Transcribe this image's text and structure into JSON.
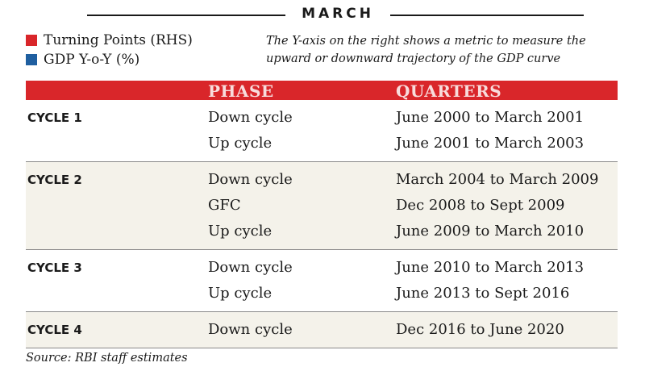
{
  "header": {
    "title": "MARCH"
  },
  "legend": [
    {
      "label": "Turning Points (RHS)",
      "color": "#d9262a"
    },
    {
      "label": "GDP Y-o-Y (%)",
      "color": "#1f5fa0"
    }
  ],
  "note": "The Y-axis on the right shows a metric to measure the upward or downward trajectory of the GDP curve",
  "table": {
    "header_color": "#d9262a",
    "columns": {
      "phase": "PHASE",
      "quarters": "QUARTERS"
    },
    "cycles": [
      {
        "label": "CYCLE 1",
        "rows": [
          {
            "phase": "Down cycle",
            "quarters": "June 2000 to March 2001"
          },
          {
            "phase": "Up cycle",
            "quarters": "June 2001 to March 2003"
          }
        ]
      },
      {
        "label": "CYCLE 2",
        "rows": [
          {
            "phase": "Down cycle",
            "quarters": "March 2004 to March 2009"
          },
          {
            "phase": "GFC",
            "quarters": "Dec 2008 to Sept 2009"
          },
          {
            "phase": "Up cycle",
            "quarters": "June 2009 to March 2010"
          }
        ]
      },
      {
        "label": "CYCLE 3",
        "rows": [
          {
            "phase": "Down cycle",
            "quarters": "June 2010 to March 2013"
          },
          {
            "phase": "Up cycle",
            "quarters": "June 2013 to Sept 2016"
          }
        ]
      },
      {
        "label": "CYCLE 4",
        "rows": [
          {
            "phase": "Down cycle",
            "quarters": "Dec 2016 to June 2020"
          }
        ]
      }
    ]
  },
  "source": "Source: RBI staff estimates"
}
